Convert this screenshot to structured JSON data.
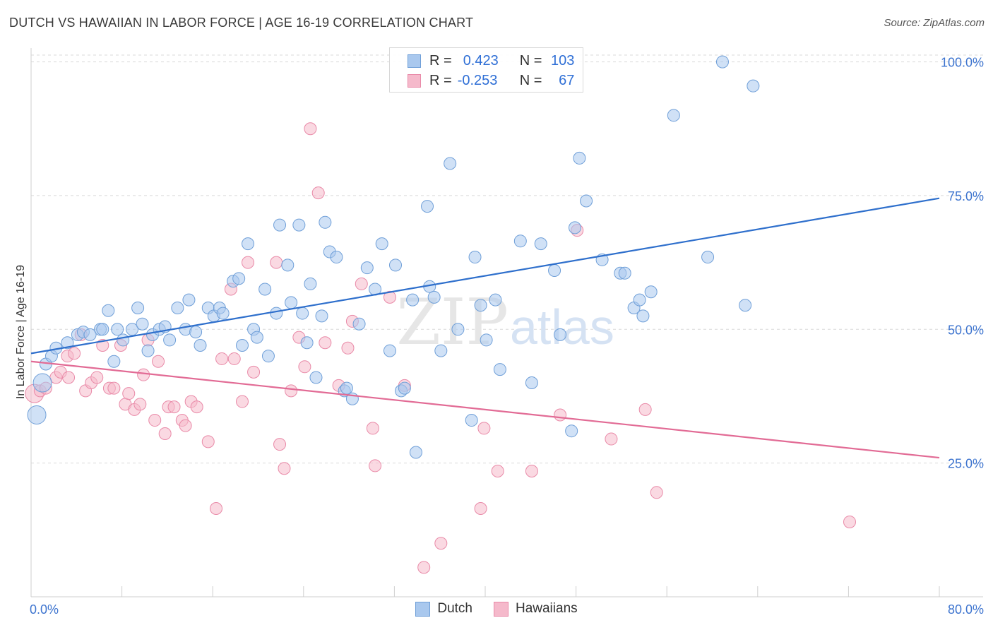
{
  "title": "DUTCH VS HAWAIIAN IN LABOR FORCE | AGE 16-19 CORRELATION CHART",
  "source": "Source: ZipAtlas.com",
  "watermark": {
    "zip": "ZIP",
    "atlas": "atlas"
  },
  "colors": {
    "dutch_fill": "#a9c8ee",
    "dutch_stroke": "#6f9fd8",
    "dutch_line": "#2e6fcc",
    "hawaiian_fill": "#f5b9cb",
    "hawaiian_stroke": "#e98aa8",
    "hawaiian_line": "#e26b95",
    "tick_label": "#3d74cf",
    "grid": "#d9d9d9"
  },
  "legend_top": {
    "rows": [
      {
        "series": "dutch",
        "r_label": "R =",
        "r_value": "0.423",
        "n_label": "N =",
        "n_value": "103"
      },
      {
        "series": "hawaiian",
        "r_label": "R =",
        "r_value": "-0.253",
        "n_label": "N =",
        "n_value": "67"
      }
    ]
  },
  "legend_bottom": [
    {
      "series": "dutch",
      "label": "Dutch"
    },
    {
      "series": "hawaiian",
      "label": "Hawaiians"
    }
  ],
  "chart_data": {
    "type": "scatter",
    "title": "DUTCH VS HAWAIIAN IN LABOR FORCE | AGE 16-19 CORRELATION CHART",
    "xlabel": "",
    "ylabel": "In Labor Force | Age 16-19",
    "xlim": [
      0,
      80
    ],
    "ylim": [
      0,
      102
    ],
    "x_tick_labels": [
      "0.0%",
      "80.0%"
    ],
    "y_ticks": [
      25,
      50,
      75,
      100
    ],
    "y_tick_labels": [
      "25.0%",
      "50.0%",
      "75.0%",
      "100.0%"
    ],
    "grid": true,
    "series": [
      {
        "name": "Dutch",
        "trend": {
          "x": [
            0,
            80
          ],
          "y": [
            45.5,
            74.5
          ]
        },
        "points": [
          [
            0.5,
            34,
            2
          ],
          [
            1,
            40,
            2
          ],
          [
            1.3,
            43.5,
            1
          ],
          [
            1.8,
            45,
            1
          ],
          [
            2.2,
            46.5,
            1
          ],
          [
            3.2,
            47.5,
            1
          ],
          [
            4.1,
            49,
            1
          ],
          [
            4.6,
            49.5,
            1
          ],
          [
            5.2,
            49,
            1
          ],
          [
            6.1,
            50,
            1
          ],
          [
            6.3,
            50,
            1
          ],
          [
            6.8,
            53.5,
            1
          ],
          [
            7.3,
            44,
            1
          ],
          [
            7.6,
            50,
            1
          ],
          [
            8.1,
            48,
            1
          ],
          [
            8.9,
            50,
            1
          ],
          [
            9.4,
            54,
            1
          ],
          [
            9.8,
            51,
            1
          ],
          [
            10.3,
            46,
            1
          ],
          [
            10.7,
            49,
            1
          ],
          [
            11.3,
            50,
            1
          ],
          [
            11.8,
            50.5,
            1
          ],
          [
            12.2,
            48,
            1
          ],
          [
            12.9,
            54,
            1
          ],
          [
            13.6,
            50,
            1
          ],
          [
            13.9,
            55.5,
            1
          ],
          [
            14.5,
            49.5,
            1
          ],
          [
            14.9,
            47,
            1
          ],
          [
            15.6,
            54,
            1
          ],
          [
            16.1,
            52.5,
            1
          ],
          [
            16.6,
            54,
            1
          ],
          [
            16.9,
            53,
            1
          ],
          [
            17.8,
            59,
            1
          ],
          [
            18.3,
            59.5,
            1
          ],
          [
            18.6,
            47,
            1
          ],
          [
            19.1,
            66,
            1
          ],
          [
            19.6,
            50,
            1
          ],
          [
            19.9,
            48.5,
            1
          ],
          [
            20.6,
            57.5,
            1
          ],
          [
            20.9,
            45,
            1
          ],
          [
            21.6,
            53,
            1
          ],
          [
            21.9,
            69.5,
            1
          ],
          [
            22.6,
            62,
            1
          ],
          [
            22.9,
            55,
            1
          ],
          [
            23.6,
            69.5,
            1
          ],
          [
            23.9,
            53,
            1
          ],
          [
            24.3,
            47.5,
            1
          ],
          [
            24.6,
            58.5,
            1
          ],
          [
            25.1,
            41,
            1
          ],
          [
            25.6,
            52.5,
            1
          ],
          [
            25.9,
            70,
            1
          ],
          [
            26.3,
            64.5,
            1
          ],
          [
            26.9,
            63.5,
            1
          ],
          [
            27.6,
            38.5,
            1
          ],
          [
            27.8,
            39,
            1
          ],
          [
            28.3,
            37,
            1
          ],
          [
            28.9,
            51,
            1
          ],
          [
            29.6,
            61.5,
            1
          ],
          [
            30.3,
            57.5,
            1
          ],
          [
            30.9,
            66,
            1
          ],
          [
            31.6,
            46,
            1
          ],
          [
            32.1,
            62,
            1
          ],
          [
            32.6,
            38.5,
            1
          ],
          [
            32.9,
            39,
            1
          ],
          [
            33.6,
            55.5,
            1
          ],
          [
            34.9,
            73,
            1
          ],
          [
            35.1,
            58,
            1
          ],
          [
            35.5,
            56,
            1
          ],
          [
            36.1,
            46,
            1
          ],
          [
            36.9,
            81,
            1
          ],
          [
            37.6,
            50,
            1
          ],
          [
            39.1,
            63.5,
            1
          ],
          [
            38.8,
            33,
            1
          ],
          [
            39.6,
            54.5,
            1
          ],
          [
            40.1,
            48,
            1
          ],
          [
            40.9,
            55.5,
            1
          ],
          [
            41.3,
            42.5,
            1
          ],
          [
            43.1,
            66.5,
            1
          ],
          [
            44.1,
            40,
            1
          ],
          [
            44.9,
            66,
            1
          ],
          [
            46.1,
            61,
            1
          ],
          [
            46.6,
            49,
            1
          ],
          [
            47.6,
            31,
            1
          ],
          [
            47.9,
            69,
            1
          ],
          [
            48.9,
            74,
            1
          ],
          [
            48.3,
            82,
            1
          ],
          [
            50.3,
            63,
            1
          ],
          [
            51.9,
            60.5,
            1
          ],
          [
            52.3,
            60.5,
            1
          ],
          [
            53.1,
            54,
            1
          ],
          [
            53.6,
            55.5,
            1
          ],
          [
            53.9,
            52.5,
            1
          ],
          [
            54.6,
            57,
            1
          ],
          [
            56.6,
            90,
            1
          ],
          [
            59.6,
            63.5,
            1
          ],
          [
            60.9,
            100,
            1
          ],
          [
            62.9,
            54.5,
            1
          ],
          [
            63.6,
            95.5,
            1
          ],
          [
            33.9,
            27,
            1
          ]
        ]
      },
      {
        "name": "Hawaiians",
        "trend": {
          "x": [
            0,
            80
          ],
          "y": [
            44,
            26
          ]
        },
        "points": [
          [
            0.3,
            38,
            2
          ],
          [
            0.8,
            38.5,
            1
          ],
          [
            1.3,
            39,
            1
          ],
          [
            2.2,
            41,
            1
          ],
          [
            2.6,
            42,
            1
          ],
          [
            3.2,
            45,
            1
          ],
          [
            3.3,
            41,
            1
          ],
          [
            3.8,
            45.5,
            1
          ],
          [
            4.4,
            49,
            1
          ],
          [
            4.8,
            38.5,
            1
          ],
          [
            5.3,
            40,
            1
          ],
          [
            5.8,
            41,
            1
          ],
          [
            6.3,
            47,
            1
          ],
          [
            6.9,
            39,
            1
          ],
          [
            7.3,
            39,
            1
          ],
          [
            7.9,
            47,
            1
          ],
          [
            8.3,
            36,
            1
          ],
          [
            8.6,
            38,
            1
          ],
          [
            9.1,
            35,
            1
          ],
          [
            9.6,
            36,
            1
          ],
          [
            9.9,
            41.5,
            1
          ],
          [
            10.3,
            48,
            1
          ],
          [
            10.9,
            33,
            1
          ],
          [
            11.2,
            44,
            1
          ],
          [
            11.8,
            30.5,
            1
          ],
          [
            12.1,
            35.5,
            1
          ],
          [
            12.6,
            35.5,
            1
          ],
          [
            13.3,
            33,
            1
          ],
          [
            13.6,
            32,
            1
          ],
          [
            14.1,
            36.5,
            1
          ],
          [
            14.6,
            35.5,
            1
          ],
          [
            15.6,
            29,
            1
          ],
          [
            16.3,
            16.5,
            1
          ],
          [
            16.8,
            44.5,
            1
          ],
          [
            17.6,
            57.5,
            1
          ],
          [
            17.9,
            44.5,
            1
          ],
          [
            18.6,
            36.5,
            1
          ],
          [
            19.1,
            62.5,
            1
          ],
          [
            19.6,
            42,
            1
          ],
          [
            21.6,
            62.5,
            1
          ],
          [
            21.9,
            28.5,
            1
          ],
          [
            22.3,
            24,
            1
          ],
          [
            22.9,
            38.5,
            1
          ],
          [
            23.6,
            48.5,
            1
          ],
          [
            24.1,
            43,
            1
          ],
          [
            24.6,
            87.5,
            1
          ],
          [
            25.3,
            75.5,
            1
          ],
          [
            25.9,
            47.5,
            1
          ],
          [
            27.1,
            39.5,
            1
          ],
          [
            27.9,
            46.5,
            1
          ],
          [
            28.3,
            51.5,
            1
          ],
          [
            29.1,
            58.5,
            1
          ],
          [
            30.1,
            31.5,
            1
          ],
          [
            30.3,
            24.5,
            1
          ],
          [
            31.6,
            56,
            1
          ],
          [
            32.9,
            39.5,
            1
          ],
          [
            34.6,
            5.5,
            1
          ],
          [
            36.1,
            10,
            1
          ],
          [
            39.6,
            16.5,
            1
          ],
          [
            39.9,
            31.5,
            1
          ],
          [
            41.1,
            23.5,
            1
          ],
          [
            44.1,
            23.5,
            1
          ],
          [
            46.6,
            34,
            1
          ],
          [
            48.1,
            68.5,
            1
          ],
          [
            51.1,
            29.5,
            1
          ],
          [
            54.1,
            35,
            1
          ],
          [
            55.1,
            19.5,
            1
          ],
          [
            72.1,
            14,
            1
          ]
        ]
      }
    ]
  }
}
